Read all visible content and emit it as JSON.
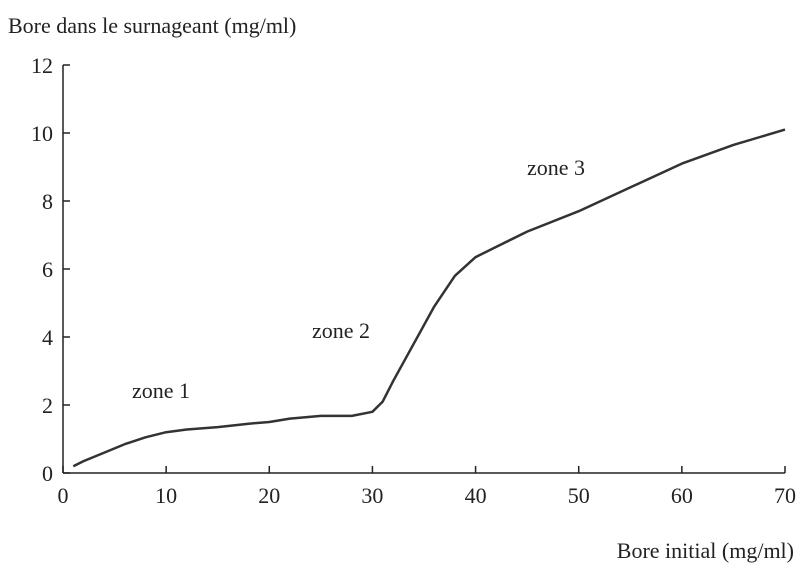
{
  "chart_data": {
    "type": "line",
    "y_axis_label": "Bore dans le surnageant (mg/ml)",
    "x_axis_label": "Bore initial (mg/ml)",
    "annotations": [
      "zone 1",
      "zone 2",
      "zone 3"
    ],
    "x": [
      1,
      2,
      4,
      6,
      8,
      10,
      12,
      15,
      18,
      20,
      22,
      25,
      28,
      30,
      31,
      32,
      34,
      36,
      38,
      40,
      42,
      45,
      50,
      55,
      60,
      65,
      70
    ],
    "series": [
      {
        "color": "#333333",
        "values": [
          0.2,
          0.35,
          0.6,
          0.85,
          1.05,
          1.2,
          1.28,
          1.35,
          1.45,
          1.5,
          1.6,
          1.68,
          1.68,
          1.8,
          2.1,
          2.7,
          3.8,
          4.9,
          5.8,
          6.35,
          6.65,
          7.1,
          7.7,
          8.4,
          9.1,
          9.65,
          10.1
        ]
      }
    ],
    "xlim": [
      0,
      70
    ],
    "ylim": [
      0,
      12
    ],
    "xticks": [
      0,
      10,
      20,
      30,
      40,
      50,
      60,
      70
    ],
    "yticks": [
      0,
      2,
      4,
      6,
      8,
      10,
      12
    ]
  }
}
